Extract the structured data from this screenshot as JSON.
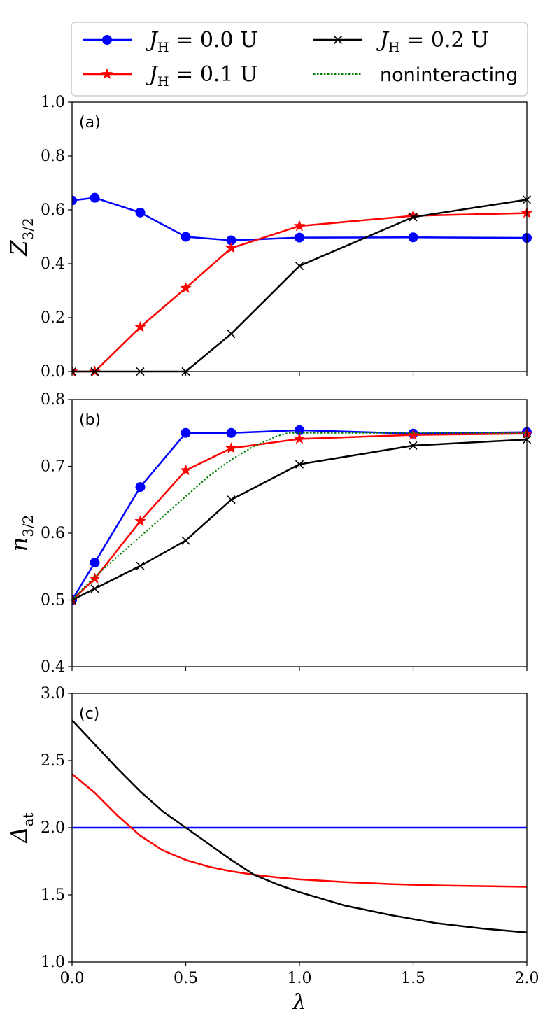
{
  "legend": {
    "entries": [
      {
        "series_index": 0,
        "symbol": "J",
        "subscript": "H",
        "value_text": " = 0.0 U"
      },
      {
        "series_index": 1,
        "symbol": "J",
        "subscript": "H",
        "value_text": " = 0.1 U"
      },
      {
        "series_index": 2,
        "symbol": "J",
        "subscript": "H",
        "value_text": " = 0.2 U"
      },
      {
        "series_index": 3,
        "text": "noninteracting"
      }
    ]
  },
  "colors": {
    "jh00": "#0000ff",
    "jh01": "#ff0000",
    "jh02": "#000000",
    "noninteracting": "#008000"
  },
  "chart_data": [
    {
      "type": "line",
      "panel_label": "(a)",
      "ylabel": {
        "symbol": "Z",
        "subscript": "3/2"
      },
      "xlabel": "",
      "xlim": [
        0,
        2.0
      ],
      "ylim": [
        0,
        1.0
      ],
      "xticks": [
        0.0,
        0.5,
        1.0,
        1.5,
        2.0
      ],
      "yticks": [
        0.0,
        0.2,
        0.4,
        0.6,
        0.8,
        1.0
      ],
      "ytick_labels": [
        "0.0",
        "0.2",
        "0.4",
        "0.6",
        "0.8",
        "1.0"
      ],
      "series": [
        {
          "name": "J_H = 0.0 U",
          "marker": "circle",
          "color": "#0000ff",
          "x": [
            0.0,
            0.1,
            0.3,
            0.5,
            0.7,
            1.0,
            1.5,
            2.0
          ],
          "y": [
            0.635,
            0.645,
            0.59,
            0.5,
            0.487,
            0.497,
            0.498,
            0.496
          ]
        },
        {
          "name": "J_H = 0.1 U",
          "marker": "star",
          "color": "#ff0000",
          "x": [
            0.0,
            0.1,
            0.3,
            0.5,
            0.7,
            1.0,
            1.5,
            2.0
          ],
          "y": [
            0.0,
            0.0,
            0.165,
            0.31,
            0.458,
            0.54,
            0.578,
            0.588
          ]
        },
        {
          "name": "J_H = 0.2 U",
          "marker": "x",
          "color": "#000000",
          "x": [
            0.0,
            0.1,
            0.3,
            0.5,
            0.7,
            1.0,
            1.5,
            2.0
          ],
          "y": [
            0.0,
            0.0,
            0.0,
            0.0,
            0.14,
            0.392,
            0.573,
            0.638
          ]
        }
      ]
    },
    {
      "type": "line",
      "panel_label": "(b)",
      "ylabel": {
        "symbol": "n",
        "subscript": "3/2"
      },
      "xlabel": "",
      "xlim": [
        0,
        2.0
      ],
      "ylim": [
        0.4,
        0.8
      ],
      "xticks": [
        0.0,
        0.5,
        1.0,
        1.5,
        2.0
      ],
      "yticks": [
        0.4,
        0.5,
        0.6,
        0.7,
        0.8
      ],
      "ytick_labels": [
        "0.4",
        "0.5",
        "0.6",
        "0.7",
        "0.8"
      ],
      "series": [
        {
          "name": "J_H = 0.0 U",
          "marker": "circle",
          "color": "#0000ff",
          "x": [
            0.0,
            0.1,
            0.3,
            0.5,
            0.7,
            1.0,
            1.5,
            2.0
          ],
          "y": [
            0.5,
            0.556,
            0.669,
            0.75,
            0.75,
            0.754,
            0.749,
            0.751
          ]
        },
        {
          "name": "J_H = 0.1 U",
          "marker": "star",
          "color": "#ff0000",
          "x": [
            0.0,
            0.1,
            0.3,
            0.5,
            0.7,
            1.0,
            1.5,
            2.0
          ],
          "y": [
            0.5,
            0.532,
            0.618,
            0.694,
            0.727,
            0.741,
            0.747,
            0.749
          ]
        },
        {
          "name": "J_H = 0.2 U",
          "marker": "x",
          "color": "#000000",
          "x": [
            0.0,
            0.1,
            0.3,
            0.5,
            0.7,
            1.0,
            1.5,
            2.0
          ],
          "y": [
            0.5,
            0.517,
            0.551,
            0.589,
            0.65,
            0.703,
            0.731,
            0.74
          ]
        },
        {
          "name": "noninteracting",
          "marker": "none",
          "dashed": true,
          "color": "#008000",
          "x": [
            0.0,
            0.1,
            0.2,
            0.3,
            0.4,
            0.5,
            0.6,
            0.7,
            0.8,
            0.9,
            0.95,
            1.0,
            1.5,
            2.0
          ],
          "y": [
            0.5,
            0.535,
            0.565,
            0.595,
            0.625,
            0.655,
            0.685,
            0.71,
            0.73,
            0.745,
            0.75,
            0.75,
            0.75,
            0.75
          ]
        }
      ]
    },
    {
      "type": "line",
      "panel_label": "(c)",
      "ylabel": {
        "symbol": "Δ",
        "subscript": "at"
      },
      "xlabel": "λ",
      "xlim": [
        0,
        2.0
      ],
      "ylim": [
        1.0,
        3.0
      ],
      "xticks": [
        0.0,
        0.5,
        1.0,
        1.5,
        2.0
      ],
      "xtick_labels": [
        "0.0",
        "0.5",
        "1.0",
        "1.5",
        "2.0"
      ],
      "yticks": [
        1.0,
        1.5,
        2.0,
        2.5,
        3.0
      ],
      "ytick_labels": [
        "1.0",
        "1.5",
        "2.0",
        "2.5",
        "3.0"
      ],
      "series": [
        {
          "name": "J_H = 0.0 U",
          "marker": "none",
          "color": "#0000ff",
          "x": [
            0.0,
            2.0
          ],
          "y": [
            2.0,
            2.0
          ]
        },
        {
          "name": "J_H = 0.1 U",
          "marker": "none",
          "color": "#ff0000",
          "x": [
            0.0,
            0.1,
            0.2,
            0.3,
            0.4,
            0.5,
            0.6,
            0.7,
            0.8,
            0.9,
            1.0,
            1.2,
            1.4,
            1.6,
            1.8,
            2.0
          ],
          "y": [
            2.4,
            2.26,
            2.09,
            1.94,
            1.83,
            1.76,
            1.71,
            1.675,
            1.65,
            1.63,
            1.615,
            1.595,
            1.58,
            1.57,
            1.565,
            1.56
          ]
        },
        {
          "name": "J_H = 0.2 U",
          "marker": "none",
          "color": "#000000",
          "x": [
            0.0,
            0.1,
            0.2,
            0.3,
            0.4,
            0.5,
            0.6,
            0.7,
            0.8,
            0.9,
            1.0,
            1.2,
            1.4,
            1.6,
            1.8,
            2.0
          ],
          "y": [
            2.8,
            2.62,
            2.44,
            2.27,
            2.12,
            2.0,
            1.88,
            1.76,
            1.65,
            1.58,
            1.52,
            1.42,
            1.35,
            1.29,
            1.25,
            1.22
          ]
        }
      ]
    }
  ]
}
